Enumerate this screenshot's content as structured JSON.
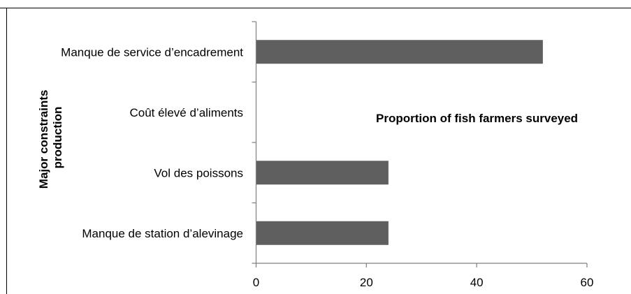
{
  "chart_data": {
    "type": "bar",
    "orientation": "horizontal",
    "categories": [
      "Manque de service d’encadrement",
      "Coût élevé d’aliments",
      "Vol des poissons",
      "Manque de station d’alevinage"
    ],
    "values": [
      52,
      0,
      24,
      24
    ],
    "xlabel": "Proportion of fish farmers surveyed",
    "ylabel_lines": [
      "Major constraints",
      "production"
    ],
    "xlim": [
      0,
      60
    ],
    "xticks": [
      0,
      20,
      40,
      60
    ],
    "grid": false,
    "legend": "none",
    "bar_color": "#5f5f5f",
    "axis_color": "#7f7f7f"
  }
}
